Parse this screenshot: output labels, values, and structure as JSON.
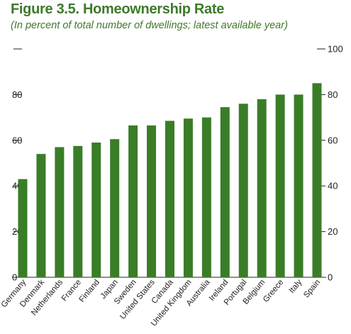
{
  "title": "Figure 3.5. Homeownership Rate",
  "subtitle": "(In percent of total number of dwellings; latest available year)",
  "colors": {
    "bar": "#3a7d27",
    "title": "#3d7a2b",
    "axis": "#222222"
  },
  "chart_data": {
    "type": "bar",
    "title": "Figure 3.5. Homeownership Rate",
    "subtitle": "(In percent of total number of dwellings; latest available year)",
    "categories": [
      "Germany",
      "Denmark",
      "Netherlands",
      "France",
      "Finland",
      "Japan",
      "Sweden",
      "United States",
      "Canada",
      "United Kingdom",
      "Australia",
      "Ireland",
      "Portugal",
      "Belgium",
      "Greece",
      "Italy",
      "Spain"
    ],
    "values": [
      43,
      54,
      57,
      57.5,
      59,
      60.5,
      66.5,
      66.5,
      68.5,
      69.5,
      70,
      74.5,
      76,
      78,
      80,
      80,
      85
    ],
    "ylim": [
      0,
      100
    ],
    "yticks": [
      0,
      20,
      40,
      60,
      80,
      100
    ],
    "ytick_labels_left": [
      "0",
      "20",
      "40",
      "60",
      "80",
      ""
    ],
    "ytick_labels_right": [
      "0",
      "20",
      "40",
      "60",
      "80",
      "100"
    ],
    "xlabel": "",
    "ylabel": "",
    "grid": false
  }
}
